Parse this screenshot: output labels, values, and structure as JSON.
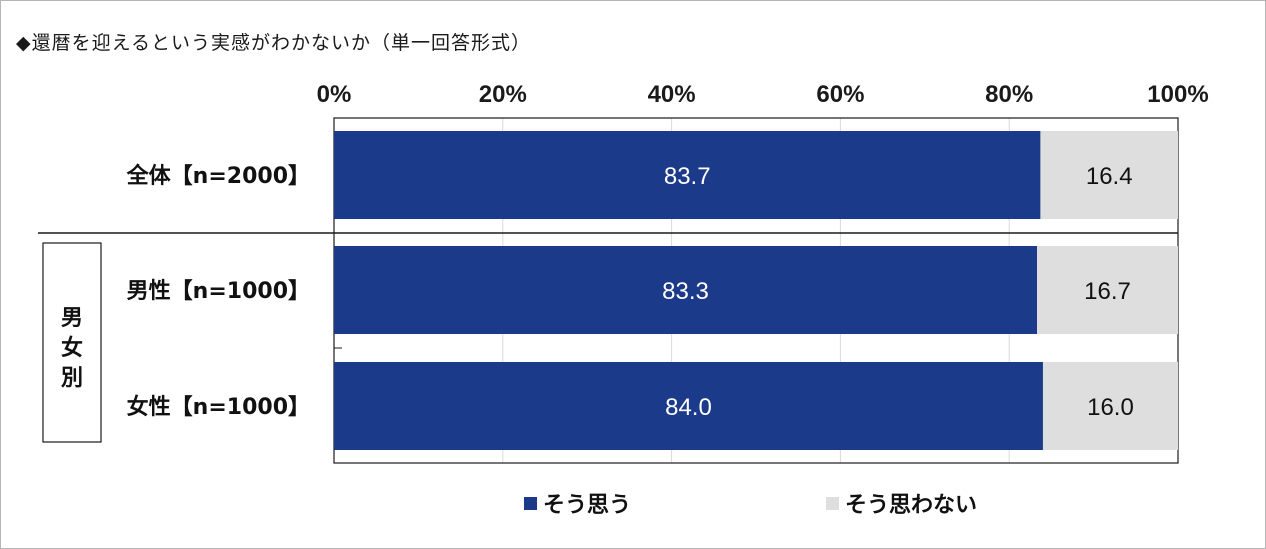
{
  "title": "◆還暦を迎えるという実感がわかないか（単一回答形式）",
  "chart_data": {
    "type": "bar",
    "stacked": true,
    "orientation": "horizontal",
    "title": "◆還暦を迎えるという実感がわかないか（単一回答形式）",
    "xlim": [
      0,
      100
    ],
    "x_ticks": [
      "0%",
      "20%",
      "40%",
      "60%",
      "80%",
      "100%"
    ],
    "grid": true,
    "legend_position": "bottom",
    "group_label": "男女別",
    "categories": [
      "全体【n=2000】",
      "男性【n=1000】",
      "女性【n=1000】"
    ],
    "series": [
      {
        "name": "そう思う",
        "color": "#1c3a8a",
        "values": [
          83.7,
          83.3,
          84.0
        ],
        "labels": [
          "83.7",
          "83.3",
          "84.0"
        ]
      },
      {
        "name": "そう思わない",
        "color": "#dedede",
        "values": [
          16.4,
          16.7,
          16.0
        ],
        "labels": [
          "16.4",
          "16.7",
          "16.0"
        ]
      }
    ]
  }
}
